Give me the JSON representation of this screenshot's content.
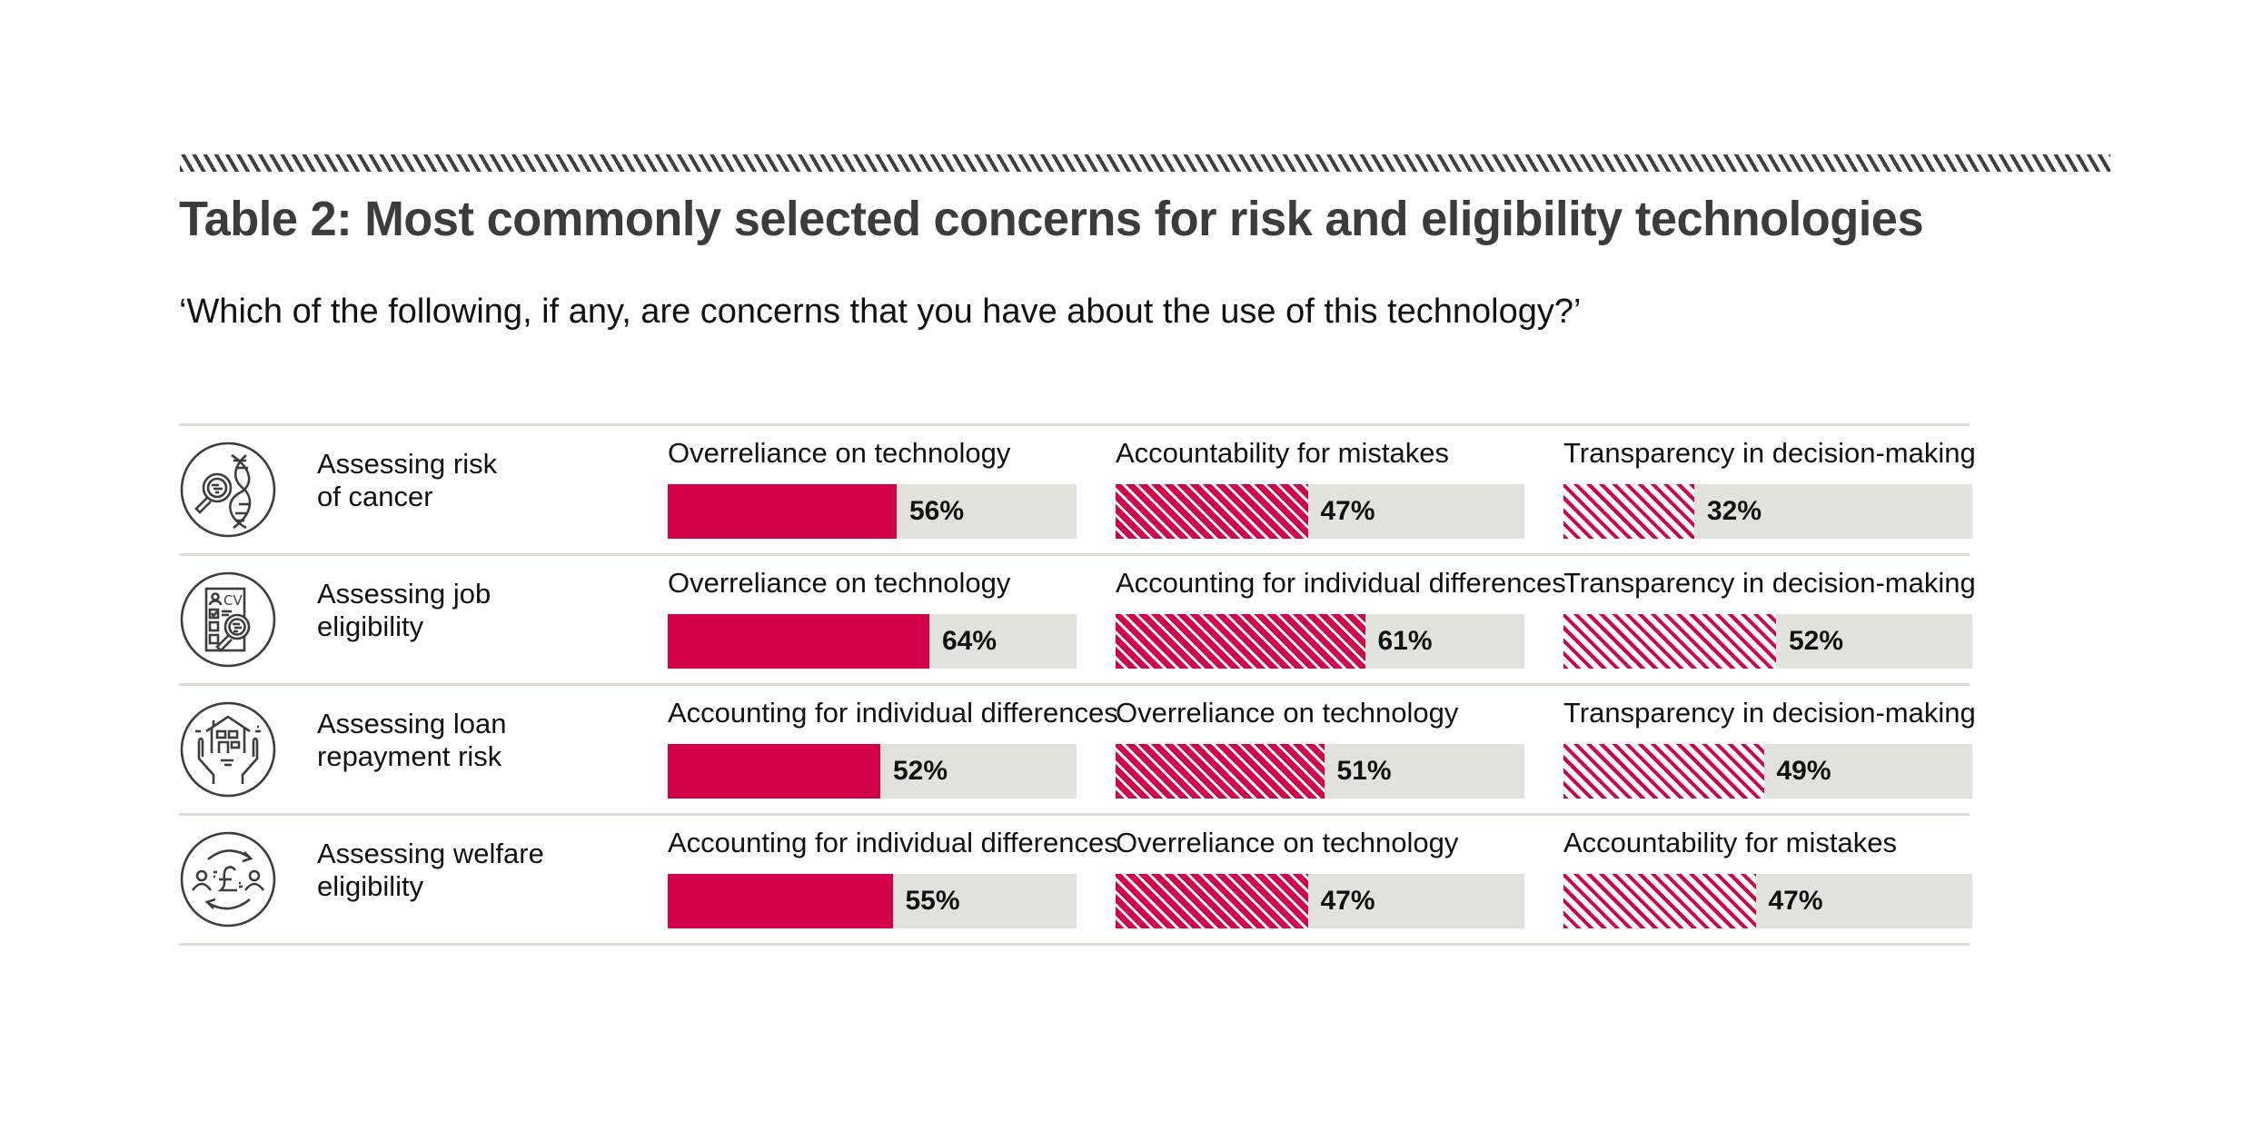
{
  "title": "Table 2: Most commonly selected concerns for risk and eligibility technologies",
  "question": "‘Which of the following, if any, are concerns that you have about the use of this technology?’",
  "colors": {
    "accent": "#d4004a",
    "track": "#e2e2dc",
    "title": "#3c3c3c",
    "rule": "#e0dcd5"
  },
  "rows": [
    {
      "icon": "dna-magnifier-icon",
      "label_line1": "Assessing risk",
      "label_line2": "of cancer",
      "concerns": [
        {
          "label": "Overreliance on technology",
          "value": 56,
          "value_label": "56%",
          "style": "solid"
        },
        {
          "label": "Accountability for mistakes",
          "value": 47,
          "value_label": "47%",
          "style": "dense"
        },
        {
          "label": "Transparency in decision-making",
          "value": 32,
          "value_label": "32%",
          "style": "sparse"
        }
      ]
    },
    {
      "icon": "cv-magnifier-icon",
      "label_line1": "Assessing job",
      "label_line2": "eligibility",
      "concerns": [
        {
          "label": "Overreliance on technology",
          "value": 64,
          "value_label": "64%",
          "style": "solid"
        },
        {
          "label": "Accounting for individual differences",
          "value": 61,
          "value_label": "61%",
          "style": "dense"
        },
        {
          "label": "Transparency in decision-making",
          "value": 52,
          "value_label": "52%",
          "style": "sparse"
        }
      ]
    },
    {
      "icon": "house-in-hands-icon",
      "label_line1": "Assessing loan",
      "label_line2": "repayment risk",
      "concerns": [
        {
          "label": "Accounting for individual differences",
          "value": 52,
          "value_label": "52%",
          "style": "solid"
        },
        {
          "label": "Overreliance on technology",
          "value": 51,
          "value_label": "51%",
          "style": "dense"
        },
        {
          "label": "Transparency in decision-making",
          "value": 49,
          "value_label": "49%",
          "style": "sparse"
        }
      ]
    },
    {
      "icon": "pound-exchange-icon",
      "label_line1": "Assessing welfare",
      "label_line2": "eligibility",
      "concerns": [
        {
          "label": "Accounting for individual differences",
          "value": 55,
          "value_label": "55%",
          "style": "solid"
        },
        {
          "label": "Overreliance on technology",
          "value": 47,
          "value_label": "47%",
          "style": "dense"
        },
        {
          "label": "Accountability for mistakes",
          "value": 47,
          "value_label": "47%",
          "style": "sparse"
        }
      ]
    }
  ],
  "chart_data": {
    "type": "bar",
    "orientation": "horizontal",
    "title": "Table 2: Most commonly selected concerns for risk and eligibility technologies",
    "subtitle": "‘Which of the following, if any, are concerns that you have about the use of this technology?’",
    "xlim": [
      0,
      100
    ],
    "unit": "%",
    "grid": false,
    "legend": "none",
    "categories": [
      "Assessing risk of cancer",
      "Assessing job eligibility",
      "Assessing loan repayment risk",
      "Assessing welfare eligibility"
    ],
    "ranked_series": [
      {
        "rank": 1,
        "labels": [
          "Overreliance on technology",
          "Overreliance on technology",
          "Accounting for individual differences",
          "Accounting for individual differences"
        ],
        "values": [
          56,
          64,
          52,
          55
        ]
      },
      {
        "rank": 2,
        "labels": [
          "Accountability for mistakes",
          "Accounting for individual differences",
          "Overreliance on technology",
          "Overreliance on technology"
        ],
        "values": [
          47,
          61,
          51,
          47
        ]
      },
      {
        "rank": 3,
        "labels": [
          "Transparency in decision-making",
          "Transparency in decision-making",
          "Transparency in decision-making",
          "Accountability for mistakes"
        ],
        "values": [
          32,
          52,
          49,
          47
        ]
      }
    ]
  }
}
